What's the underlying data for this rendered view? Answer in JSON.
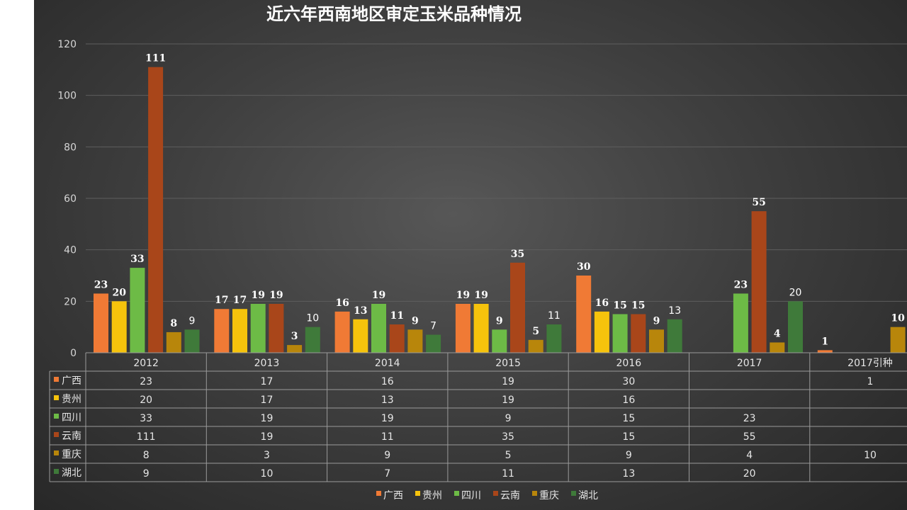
{
  "chart_data": {
    "type": "bar",
    "title": "近六年西南地区审定玉米品种情况",
    "categories": [
      "2012",
      "2013",
      "2014",
      "2015",
      "2016",
      "2017",
      "2017引种"
    ],
    "series": [
      {
        "name": "广西",
        "color": "#f07a35",
        "values": [
          23,
          17,
          16,
          19,
          30,
          null,
          1
        ]
      },
      {
        "name": "贵州",
        "color": "#f6c30c",
        "values": [
          20,
          17,
          13,
          19,
          16,
          null,
          null
        ]
      },
      {
        "name": "四川",
        "color": "#6dbb46",
        "values": [
          33,
          19,
          19,
          9,
          15,
          23,
          null
        ]
      },
      {
        "name": "云南",
        "color": "#a9461a",
        "values": [
          111,
          19,
          11,
          35,
          15,
          55,
          null
        ]
      },
      {
        "name": "重庆",
        "color": "#b8860b",
        "values": [
          8,
          3,
          9,
          5,
          9,
          4,
          10
        ]
      },
      {
        "name": "湖北",
        "color": "#3f7a3a",
        "values": [
          9,
          10,
          7,
          11,
          13,
          20,
          null
        ]
      }
    ],
    "y_ticks": [
      0,
      20,
      40,
      60,
      80,
      100,
      120
    ],
    "ylim": [
      0,
      120
    ],
    "grid": true,
    "legend": "bottom-center",
    "data_table": true
  }
}
